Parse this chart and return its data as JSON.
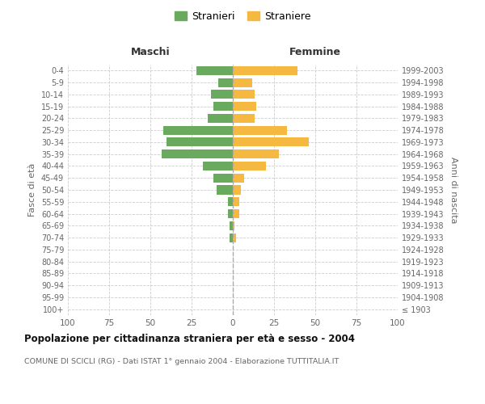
{
  "age_groups": [
    "100+",
    "95-99",
    "90-94",
    "85-89",
    "80-84",
    "75-79",
    "70-74",
    "65-69",
    "60-64",
    "55-59",
    "50-54",
    "45-49",
    "40-44",
    "35-39",
    "30-34",
    "25-29",
    "20-24",
    "15-19",
    "10-14",
    "5-9",
    "0-4"
  ],
  "birth_years": [
    "≤ 1903",
    "1904-1908",
    "1909-1913",
    "1914-1918",
    "1919-1923",
    "1924-1928",
    "1929-1933",
    "1934-1938",
    "1939-1943",
    "1944-1948",
    "1949-1953",
    "1954-1958",
    "1959-1963",
    "1964-1968",
    "1969-1973",
    "1974-1978",
    "1979-1983",
    "1984-1988",
    "1989-1993",
    "1994-1998",
    "1999-2003"
  ],
  "maschi": [
    0,
    0,
    0,
    0,
    0,
    0,
    2,
    2,
    3,
    3,
    10,
    12,
    18,
    43,
    40,
    42,
    15,
    12,
    13,
    9,
    22
  ],
  "femmine": [
    0,
    0,
    0,
    0,
    0,
    0,
    2,
    1,
    4,
    4,
    5,
    7,
    20,
    28,
    46,
    33,
    13,
    14,
    13,
    12,
    39
  ],
  "xlim": 100,
  "maschi_color": "#6aaa5e",
  "femmine_color": "#f5b942",
  "grid_color": "#cccccc",
  "title": "Popolazione per cittadinanza straniera per età e sesso - 2004",
  "subtitle": "COMUNE DI SCICLI (RG) - Dati ISTAT 1° gennaio 2004 - Elaborazione TUTTITALIA.IT",
  "ylabel_left": "Fasce di età",
  "ylabel_right": "Anni di nascita",
  "label_maschi": "Maschi",
  "label_femmine": "Femmine",
  "legend_stranieri": "Stranieri",
  "legend_straniere": "Straniere",
  "background_color": "#ffffff",
  "bar_height": 0.75
}
